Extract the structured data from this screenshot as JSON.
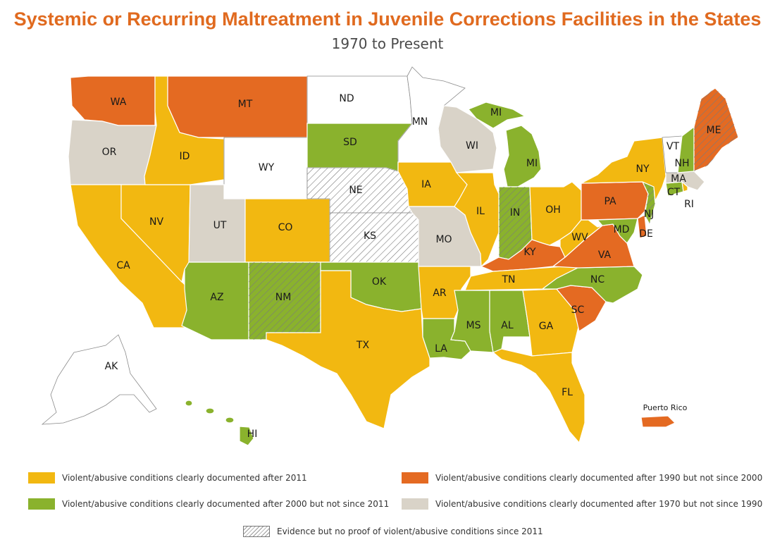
{
  "title": "Systemic or Recurring Maltreatment in Juvenile Corrections Facilities in the States",
  "subtitle": "1970 to Present",
  "colors": {
    "after_2011": "#f2b811",
    "after_2000": "#8ab22d",
    "after_1990": "#e46a22",
    "after_1970": "#d9d3c8",
    "none": "#ffffff",
    "hatch_line": "#9a9a9a"
  },
  "states": {
    "WA": {
      "label": "WA",
      "category": "after_1990"
    },
    "OR": {
      "label": "OR",
      "category": "after_1970"
    },
    "CA": {
      "label": "CA",
      "category": "after_2011"
    },
    "NV": {
      "label": "NV",
      "category": "after_2011"
    },
    "ID": {
      "label": "ID",
      "category": "after_2011"
    },
    "MT": {
      "label": "MT",
      "category": "after_1990"
    },
    "WY": {
      "label": "WY",
      "category": "none"
    },
    "UT": {
      "label": "UT",
      "category": "after_1970"
    },
    "CO": {
      "label": "CO",
      "category": "after_2011"
    },
    "AZ": {
      "label": "AZ",
      "category": "after_2000"
    },
    "NM": {
      "label": "NM",
      "category": "after_2000",
      "hatched": true
    },
    "ND": {
      "label": "ND",
      "category": "none"
    },
    "SD": {
      "label": "SD",
      "category": "after_2000"
    },
    "NE": {
      "label": "NE",
      "category": "none",
      "hatched": true
    },
    "KS": {
      "label": "KS",
      "category": "none",
      "hatched": true
    },
    "OK": {
      "label": "OK",
      "category": "after_2000"
    },
    "TX": {
      "label": "TX",
      "category": "after_2011"
    },
    "MN": {
      "label": "MN",
      "category": "none"
    },
    "IA": {
      "label": "IA",
      "category": "after_2011"
    },
    "MO": {
      "label": "MO",
      "category": "after_1970"
    },
    "AR": {
      "label": "AR",
      "category": "after_2011"
    },
    "LA": {
      "label": "LA",
      "category": "after_2000"
    },
    "WI": {
      "label": "WI",
      "category": "after_1970"
    },
    "IL": {
      "label": "IL",
      "category": "after_2011"
    },
    "MI": {
      "label": "MI",
      "category": "after_2000"
    },
    "IN": {
      "label": "IN",
      "category": "after_2000",
      "hatched": true
    },
    "OH": {
      "label": "OH",
      "category": "after_2011"
    },
    "KY": {
      "label": "KY",
      "category": "after_1990"
    },
    "TN": {
      "label": "TN",
      "category": "after_2011"
    },
    "MS": {
      "label": "MS",
      "category": "after_2000"
    },
    "AL": {
      "label": "AL",
      "category": "after_2000"
    },
    "GA": {
      "label": "GA",
      "category": "after_2011"
    },
    "FL": {
      "label": "FL",
      "category": "after_2011"
    },
    "SC": {
      "label": "SC",
      "category": "after_1990"
    },
    "NC": {
      "label": "NC",
      "category": "after_2000"
    },
    "VA": {
      "label": "VA",
      "category": "after_1990"
    },
    "WV": {
      "label": "WV",
      "category": "after_2011"
    },
    "PA": {
      "label": "PA",
      "category": "after_1990"
    },
    "NY": {
      "label": "NY",
      "category": "after_2011"
    },
    "NJ": {
      "label": "NJ",
      "category": "after_2000",
      "hatched": true
    },
    "DE": {
      "label": "DE",
      "category": "after_1990"
    },
    "MD": {
      "label": "MD",
      "category": "after_2000"
    },
    "CT": {
      "label": "CT",
      "category": "after_2000"
    },
    "RI": {
      "label": "RI",
      "category": "after_2011"
    },
    "MA": {
      "label": "MA",
      "category": "after_1970"
    },
    "VT": {
      "label": "VT",
      "category": "none"
    },
    "NH": {
      "label": "NH",
      "category": "after_2000"
    },
    "ME": {
      "label": "ME",
      "category": "after_1990",
      "hatched": true
    },
    "AK": {
      "label": "AK",
      "category": "none"
    },
    "HI": {
      "label": "HI",
      "category": "after_2000"
    },
    "PR": {
      "label": "Puerto Rico",
      "category": "after_1990"
    }
  },
  "legend": {
    "after_2011": "Violent/abusive conditions clearly documented after 2011",
    "after_2000": "Violent/abusive conditions clearly documented after 2000 but not since 2011",
    "after_1990": "Violent/abusive conditions clearly documented after 1990 but not since 2000",
    "after_1970": "Violent/abusive conditions clearly documented after 1970 but not since 1990",
    "hatched": "Evidence but no proof of violent/abusive conditions since 2011"
  }
}
